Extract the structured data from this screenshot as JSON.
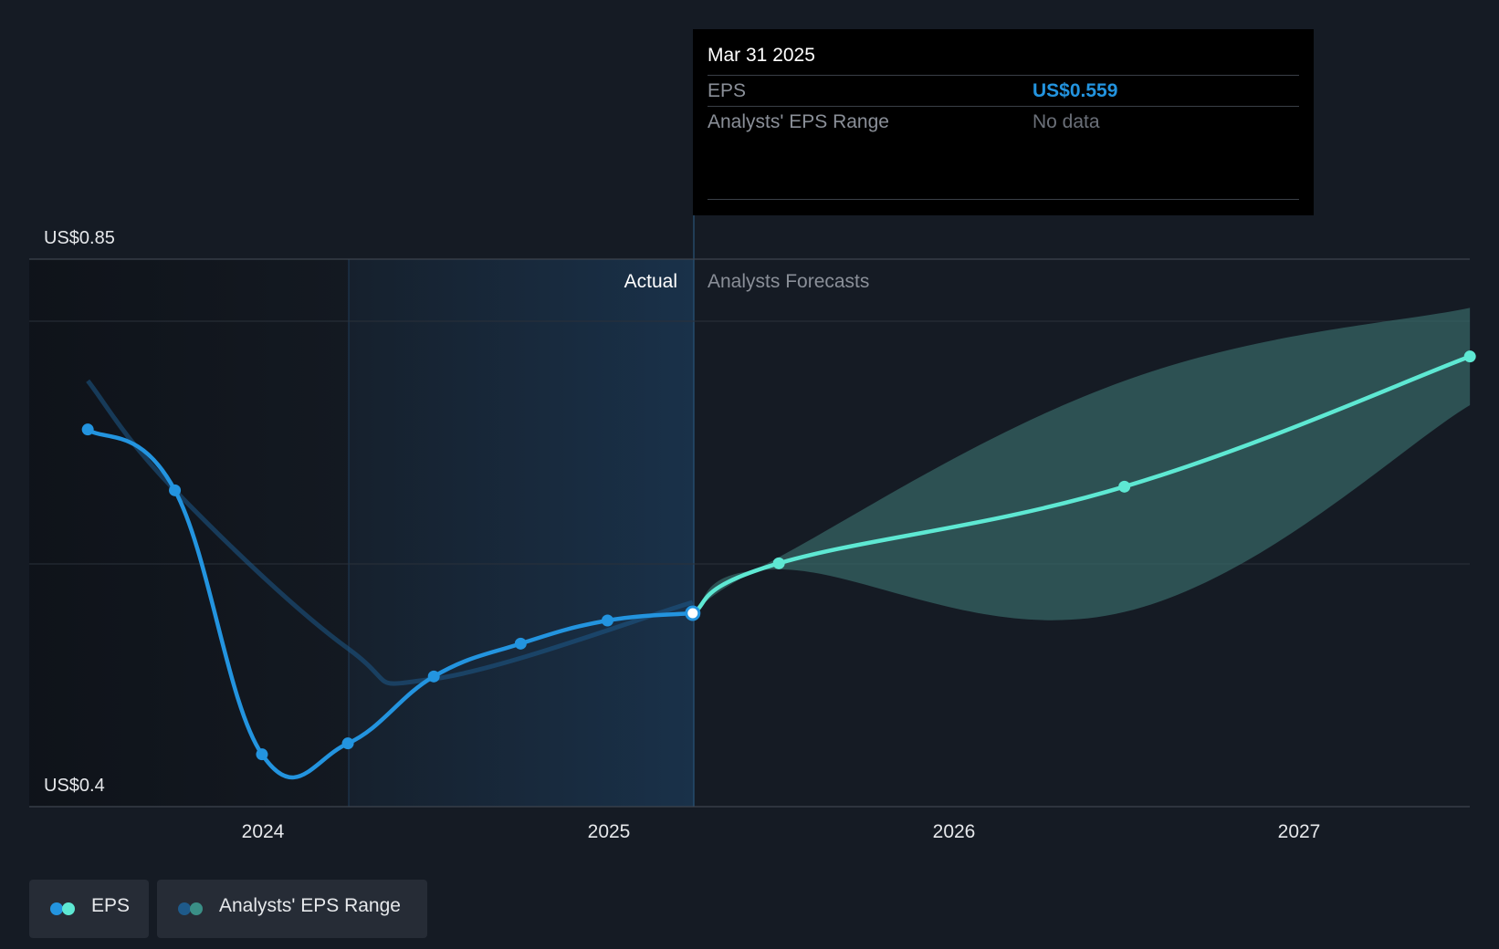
{
  "chart_data": {
    "type": "line",
    "y_axis": {
      "min_label": "US$0.4",
      "max_label": "US$0.85",
      "ylim": [
        0.4,
        0.85
      ]
    },
    "x_ticks": [
      "2024",
      "2025",
      "2026",
      "2027"
    ],
    "regions": {
      "actual": "Actual",
      "forecast": "Analysts Forecasts"
    },
    "series": [
      {
        "name": "EPS",
        "color": "#2394df",
        "points": [
          {
            "x": "2023-06-30",
            "y": 0.71
          },
          {
            "x": "2023-09-30",
            "y": 0.66
          },
          {
            "x": "2023-12-31",
            "y": 0.443
          },
          {
            "x": "2024-03-31",
            "y": 0.452
          },
          {
            "x": "2024-06-30",
            "y": 0.507
          },
          {
            "x": "2024-09-30",
            "y": 0.534
          },
          {
            "x": "2024-12-31",
            "y": 0.553
          },
          {
            "x": "2025-03-31",
            "y": 0.559
          }
        ]
      },
      {
        "name": "EPS",
        "color": "#5ee8d3",
        "points": [
          {
            "x": "2025-03-31",
            "y": 0.559
          },
          {
            "x": "2025-06-30",
            "y": 0.6
          },
          {
            "x": "2026-06-30",
            "y": 0.663
          },
          {
            "x": "2027-06-30",
            "y": 0.77
          }
        ]
      }
    ],
    "analysts_range": {
      "name": "Analysts' EPS Range",
      "color": "#3a6f6d",
      "points": [
        {
          "x": "2025-03-31",
          "low": 0.559,
          "high": 0.559
        },
        {
          "x": "2025-06-30",
          "low": 0.595,
          "high": 0.605
        },
        {
          "x": "2026-06-30",
          "low": 0.56,
          "high": 0.75
        },
        {
          "x": "2027-06-30",
          "low": 0.73,
          "high": 0.81
        }
      ]
    },
    "past_estimate": {
      "color": "#1e5a8a",
      "points": [
        {
          "x": "2023-06-30",
          "y": 0.75
        },
        {
          "x": "2023-09-30",
          "y": 0.66
        },
        {
          "x": "2024-03-31",
          "y": 0.53
        },
        {
          "x": "2024-06-30",
          "y": 0.505
        },
        {
          "x": "2025-03-31",
          "y": 0.568
        }
      ]
    }
  },
  "tooltip": {
    "date": "Mar 31 2025",
    "eps_label": "EPS",
    "eps_value": "US$0.559",
    "range_label": "Analysts' EPS Range",
    "range_value": "No data",
    "eps_color": "#2394df"
  },
  "legend": [
    {
      "label": "EPS",
      "colors": [
        "#2394df",
        "#5ee8d3"
      ]
    },
    {
      "label": "Analysts' EPS Range",
      "colors": [
        "#1e5a8a",
        "#3a8f86"
      ]
    }
  ]
}
